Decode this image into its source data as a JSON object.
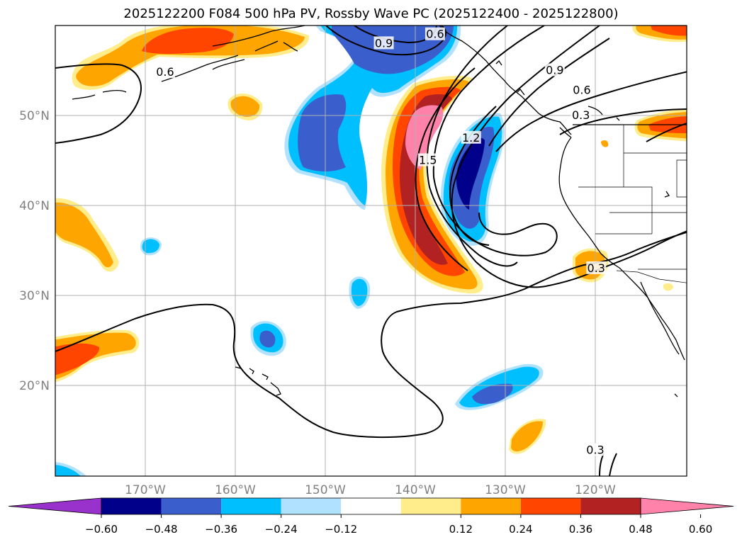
{
  "title": "2025122200 F084 500 hPa PV, Rossby Wave PC (2025122400 - 2025122800)",
  "colors": {
    "neg_060": "#9932cc",
    "neg_048": "#00008b",
    "neg_036": "#3a5fcd",
    "neg_024": "#00bfff",
    "neg_012": "#b0e2ff",
    "zero": "#ffffff",
    "pos_012": "#ffec8b",
    "pos_024": "#ffa500",
    "pos_036": "#ff4500",
    "pos_048": "#b22222",
    "pos_060": "#ff82ab",
    "grid": "#b0b0b0",
    "axis_text": "#808080"
  },
  "lat_labels": [
    {
      "lat": 50,
      "text": "50°N"
    },
    {
      "lat": 40,
      "text": "40°N"
    },
    {
      "lat": 30,
      "text": "30°N"
    },
    {
      "lat": 20,
      "text": "20°N"
    }
  ],
  "lon_labels": [
    {
      "lon": -170,
      "text": "170°W"
    },
    {
      "lon": -160,
      "text": "160°W"
    },
    {
      "lon": -150,
      "text": "150°W"
    },
    {
      "lon": -140,
      "text": "140°W"
    },
    {
      "lon": -130,
      "text": "130°W"
    },
    {
      "lon": -120,
      "text": "120°W"
    }
  ],
  "colorbar_ticks": [
    "−0.60",
    "−0.48",
    "−0.36",
    "−0.24",
    "−0.12",
    "0.12",
    "0.24",
    "0.36",
    "0.48",
    "0.60"
  ],
  "contour_labels": [
    {
      "text": "0.9",
      "lon": -143.5,
      "lat": 58.0
    },
    {
      "text": "0.6",
      "lon": -137.8,
      "lat": 59.0
    },
    {
      "text": "0.6",
      "lon": -167.8,
      "lat": 54.8
    },
    {
      "text": "0.9",
      "lon": -124.5,
      "lat": 55.0
    },
    {
      "text": "0.6",
      "lon": -121.5,
      "lat": 52.8
    },
    {
      "text": "0.3",
      "lon": -121.6,
      "lat": 50.0
    },
    {
      "text": "1.2",
      "lon": -133.8,
      "lat": 47.5
    },
    {
      "text": "1.5",
      "lon": -138.6,
      "lat": 45.0
    },
    {
      "text": "0.3",
      "lon": -119.9,
      "lat": 33.0
    },
    {
      "text": "0.3",
      "lon": -120.0,
      "lat": 12.8
    }
  ]
}
